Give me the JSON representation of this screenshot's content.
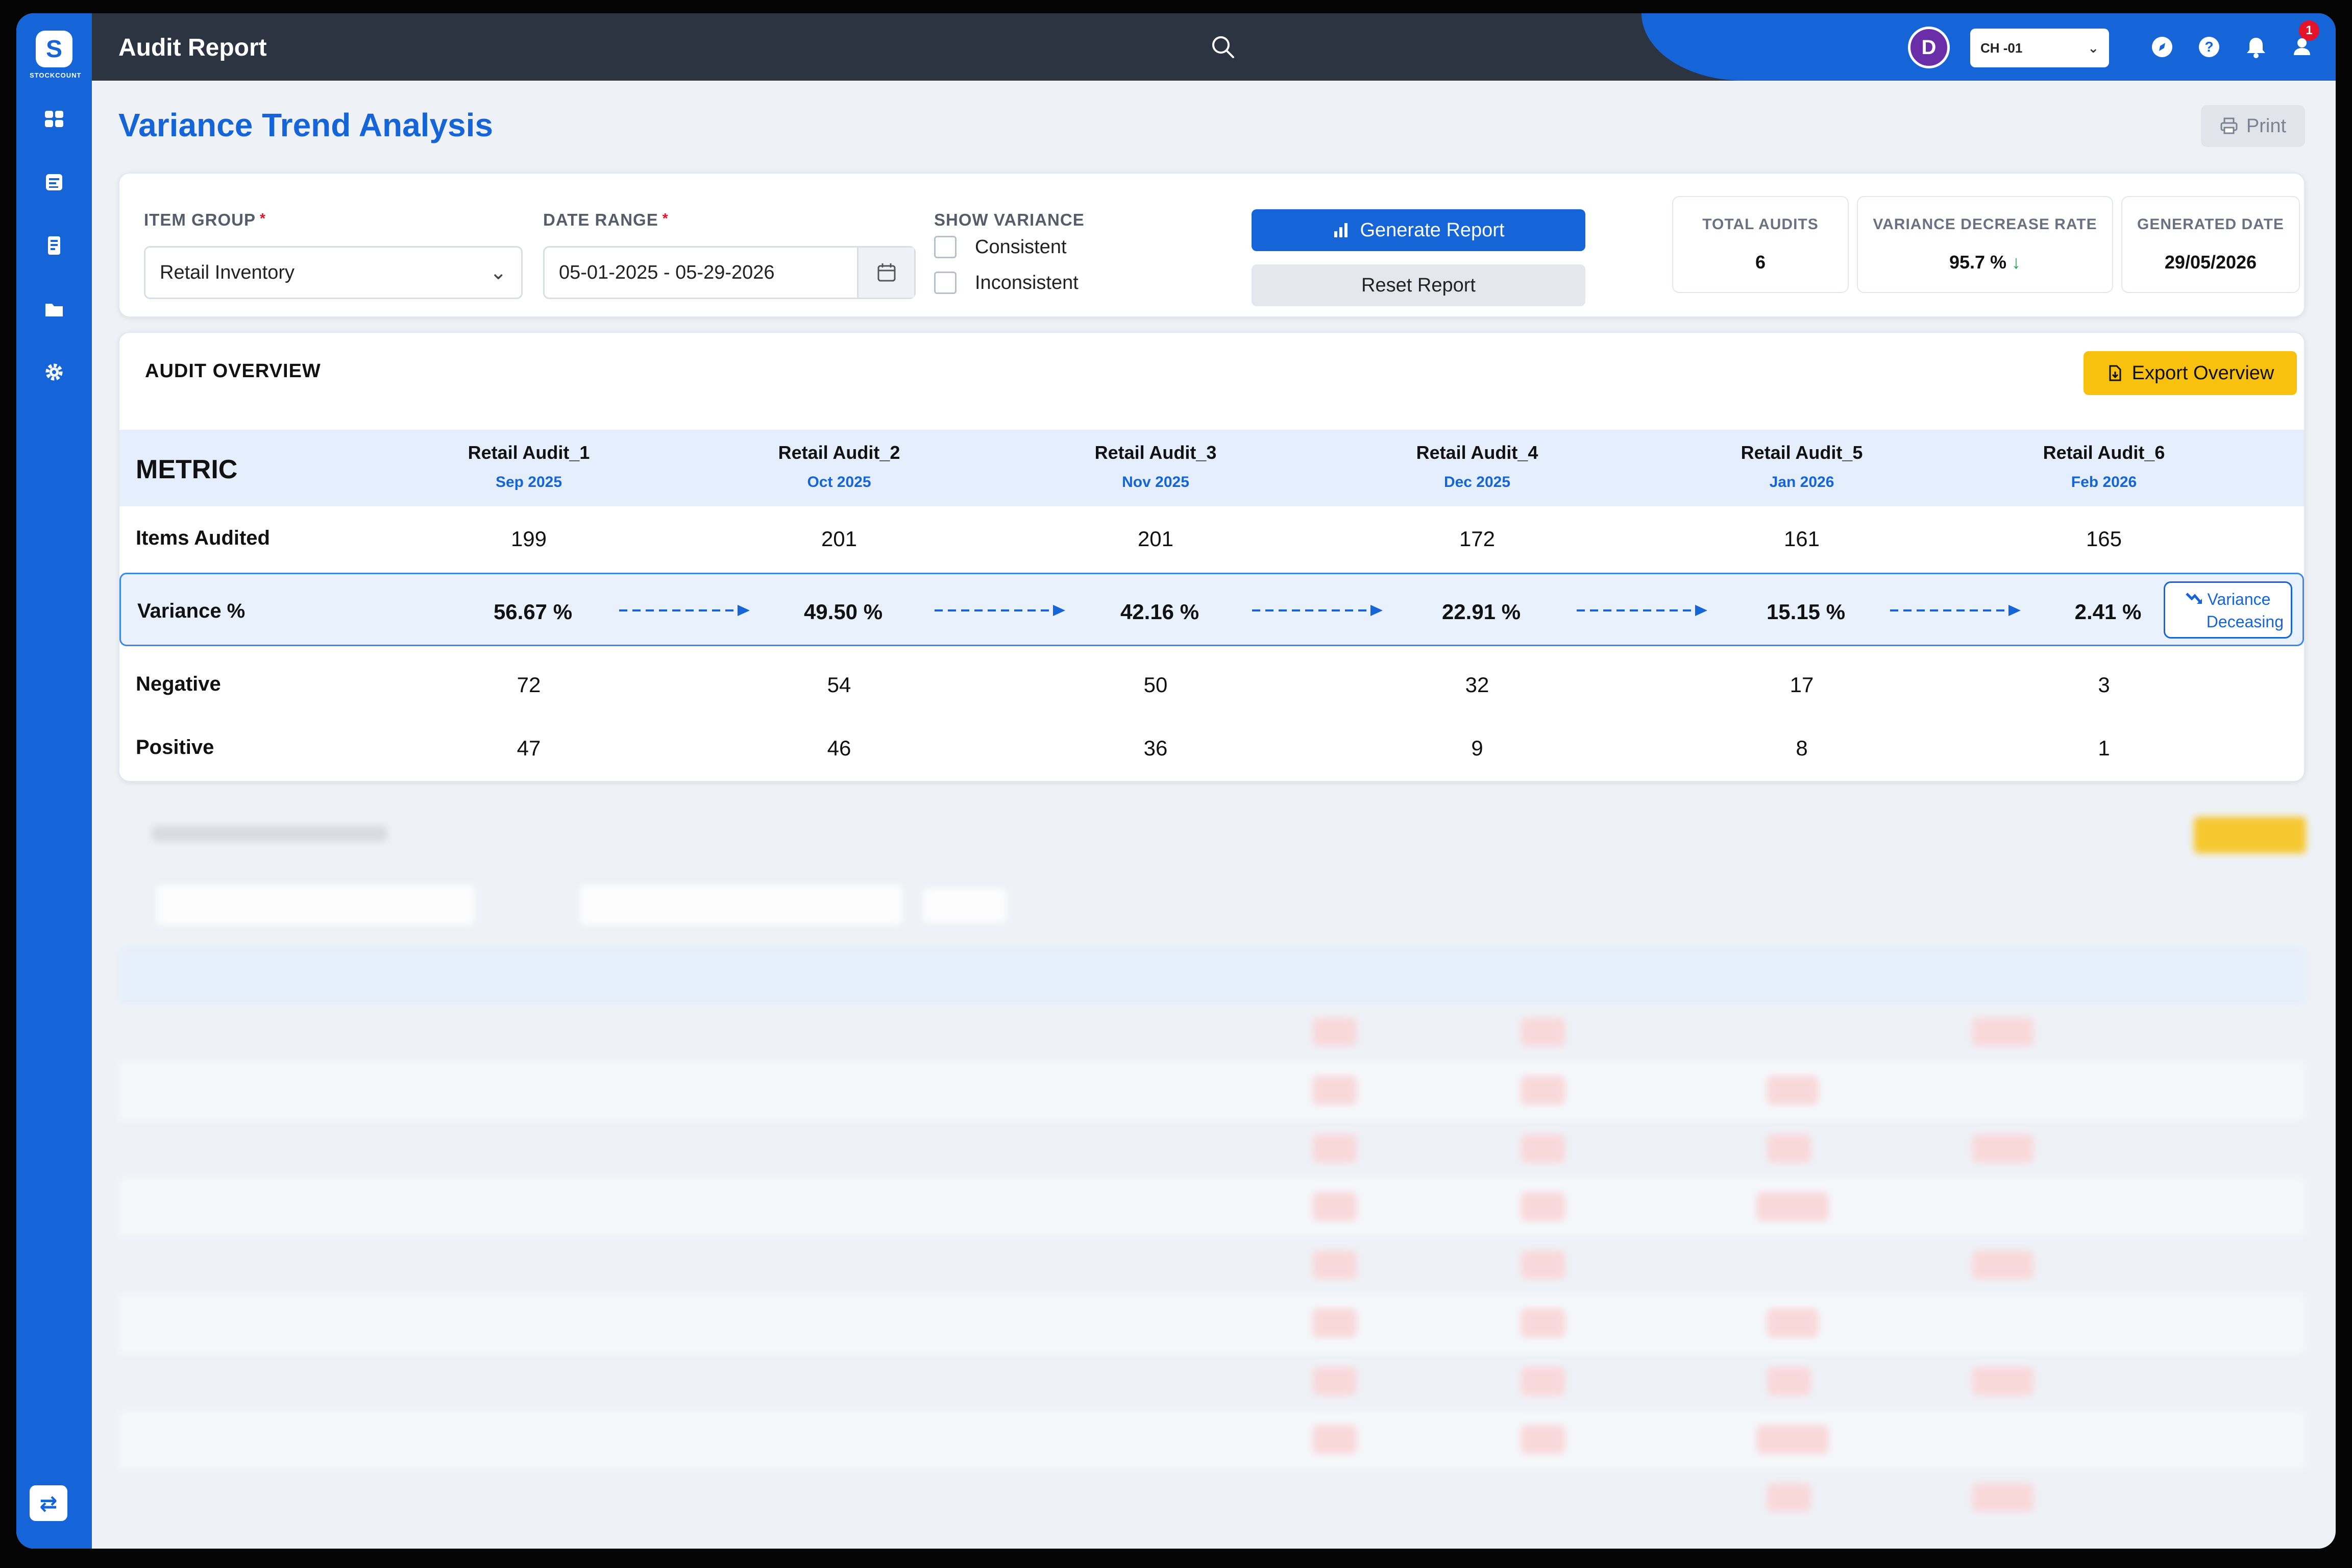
{
  "app": {
    "title": "Audit Report",
    "logo_text": "STOCKCOUNT"
  },
  "sidebar": {
    "items": [
      {
        "icon": "dashboard-icon"
      },
      {
        "icon": "report-icon"
      },
      {
        "icon": "inventory-icon"
      },
      {
        "icon": "folder-icon"
      },
      {
        "icon": "gear-icon"
      }
    ],
    "bottom_icon": "swap-icon"
  },
  "topbar": {
    "avatar_initial": "D",
    "branch": "CH -01",
    "notification_count": "1"
  },
  "page": {
    "title": "Variance Trend Analysis",
    "print_label": "Print"
  },
  "filters": {
    "item_group_label": "ITEM GROUP",
    "item_group_value": "Retail Inventory",
    "date_range_label": "DATE RANGE",
    "date_range_value": "05-01-2025 - 05-29-2026",
    "show_variance_label": "SHOW VARIANCE",
    "option_consistent": "Consistent",
    "option_inconsistent": "Inconsistent",
    "generate_label": "Generate Report",
    "reset_label": "Reset Report"
  },
  "stats": {
    "total_audits_label": "TOTAL AUDITS",
    "total_audits_value": "6",
    "decrease_rate_label": "VARIANCE DECREASE RATE",
    "decrease_rate_value": "95.7 %",
    "decrease_arrow": "↓",
    "generated_date_label": "GENERATED DATE",
    "generated_date_value": "29/05/2026"
  },
  "overview": {
    "title": "AUDIT OVERVIEW",
    "export_label": "Export Overview",
    "metric_header": "METRIC",
    "audits": [
      {
        "name": "Retail Audit_1",
        "date": "Sep 2025"
      },
      {
        "name": "Retail Audit_2",
        "date": "Oct 2025"
      },
      {
        "name": "Retail Audit_3",
        "date": "Nov 2025"
      },
      {
        "name": "Retail Audit_4",
        "date": "Dec 2025"
      },
      {
        "name": "Retail Audit_5",
        "date": "Jan 2026"
      },
      {
        "name": "Retail Audit_6",
        "date": "Feb 2026"
      }
    ],
    "rows": {
      "items_audited": {
        "label": "Items Audited",
        "values": [
          "199",
          "201",
          "201",
          "172",
          "161",
          "165"
        ]
      },
      "variance": {
        "label": "Variance %",
        "values": [
          "56.67 %",
          "49.50 %",
          "42.16 %",
          "22.91 %",
          "15.15 %",
          "2.41 %"
        ]
      },
      "negative": {
        "label": "Negative",
        "values": [
          "72",
          "54",
          "50",
          "32",
          "17",
          "3"
        ]
      },
      "positive": {
        "label": "Positive",
        "values": [
          "47",
          "46",
          "36",
          "9",
          "8",
          "1"
        ]
      }
    },
    "trend_badge_line1": "Variance",
    "trend_badge_line2": "Deceasing",
    "colors": {
      "accent": "#1565d8",
      "highlight": "#e9f1fd",
      "export": "#f8c10e"
    }
  }
}
